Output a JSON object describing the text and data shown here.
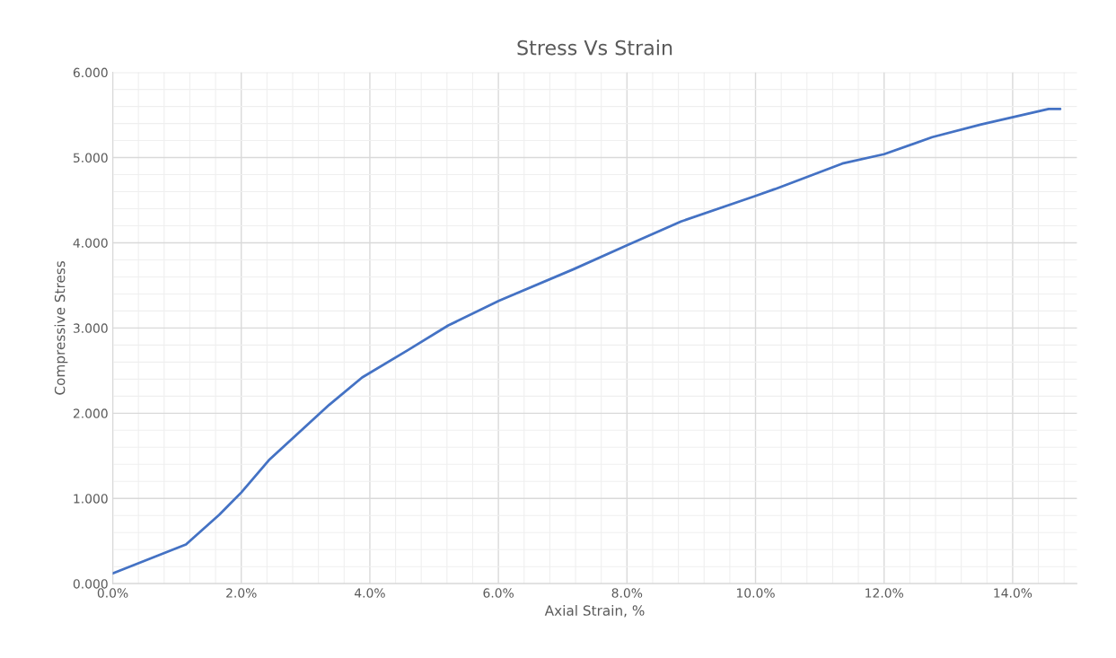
{
  "chart_data": {
    "type": "line",
    "title": "Stress Vs Strain",
    "xlabel": "Axial Strain, %",
    "ylabel": "Compressive Stress",
    "x": [
      0,
      1.14,
      1.66,
      2.0,
      2.43,
      3.37,
      3.88,
      4.59,
      5.22,
      6.01,
      7.17,
      8.0,
      8.84,
      10.0,
      10.3,
      11.35,
      12.0,
      12.75,
      13.51,
      14.56,
      14.74
    ],
    "series": [
      {
        "color": "#4472c4",
        "values": [
          0.12,
          0.46,
          0.81,
          1.07,
          1.45,
          2.1,
          2.42,
          2.74,
          3.03,
          3.32,
          3.69,
          3.97,
          4.25,
          4.55,
          4.63,
          4.93,
          5.04,
          5.24,
          5.39,
          5.57,
          5.57
        ]
      }
    ],
    "xlim": [
      0,
      15
    ],
    "ylim": [
      0,
      6
    ],
    "xticks": [
      {
        "value": 0,
        "label": "0.0%"
      },
      {
        "value": 2,
        "label": "2.0%"
      },
      {
        "value": 4,
        "label": "4.0%"
      },
      {
        "value": 6,
        "label": "6.0%"
      },
      {
        "value": 8,
        "label": "8.0%"
      },
      {
        "value": 10,
        "label": "10.0%"
      },
      {
        "value": 12,
        "label": "12.0%"
      },
      {
        "value": 14,
        "label": "14.0%"
      }
    ],
    "yticks": [
      {
        "value": 0,
        "label": "0.000"
      },
      {
        "value": 1,
        "label": "1.000"
      },
      {
        "value": 2,
        "label": "2.000"
      },
      {
        "value": 3,
        "label": "3.000"
      },
      {
        "value": 4,
        "label": "4.000"
      },
      {
        "value": 5,
        "label": "5.000"
      },
      {
        "value": 6,
        "label": "6.000"
      }
    ],
    "grid": true,
    "marker": "none",
    "line_style": "solid",
    "legend": false
  }
}
